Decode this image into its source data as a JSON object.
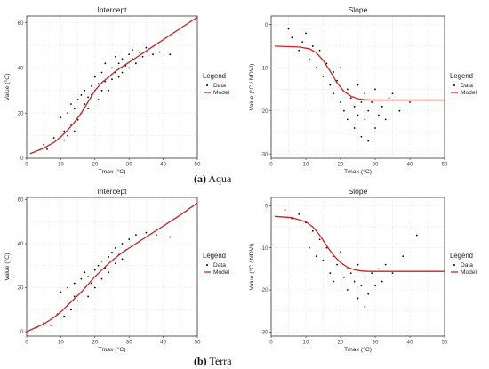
{
  "colors": {
    "data": "#000000",
    "model": "#cc2222",
    "grid": "#e6e6e6",
    "panel_border": "#333333"
  },
  "figure": {
    "captions": [
      {
        "label": "(a)",
        "text": " Aqua"
      },
      {
        "label": "(b)",
        "text": " Terra"
      }
    ]
  },
  "chart_data": [
    {
      "type": "scatter",
      "group": "Aqua",
      "title": "Intercept",
      "xlabel": "Tmax (°C)",
      "ylabel": "Value (°C)",
      "xlim": [
        0,
        50
      ],
      "ylim": [
        0,
        63
      ],
      "xticks": [
        0,
        10,
        20,
        30,
        40,
        50
      ],
      "yticks": [
        0,
        20,
        40,
        60
      ],
      "grid": true,
      "legend": {
        "title": "Legend",
        "entries": [
          "Data",
          "Model"
        ],
        "placement": "right"
      },
      "series": [
        {
          "name": "Data",
          "kind": "points",
          "x": [
            5,
            6,
            8,
            10,
            11,
            11,
            12,
            12,
            13,
            13,
            14,
            14,
            15,
            15,
            16,
            16,
            17,
            17,
            18,
            18,
            19,
            19,
            20,
            20,
            21,
            21,
            22,
            22,
            23,
            23,
            24,
            24,
            25,
            25,
            26,
            26,
            27,
            27,
            28,
            28,
            29,
            30,
            30,
            31,
            31,
            32,
            33,
            34,
            35,
            37,
            39,
            42
          ],
          "y": [
            6,
            4,
            9,
            18,
            8,
            12,
            20,
            10,
            15,
            24,
            12,
            22,
            17,
            26,
            20,
            28,
            24,
            30,
            22,
            27,
            32,
            28,
            30,
            36,
            33,
            26,
            30,
            38,
            34,
            42,
            36,
            30,
            40,
            35,
            38,
            45,
            42,
            36,
            44,
            38,
            41,
            46,
            40,
            44,
            48,
            42,
            47,
            45,
            49,
            46,
            47,
            46
          ]
        },
        {
          "name": "Model",
          "kind": "line",
          "x": [
            1,
            5,
            8,
            10,
            12,
            14,
            16,
            17,
            18,
            19,
            20,
            22,
            24,
            26,
            28,
            30,
            32,
            34,
            36,
            40,
            45,
            50
          ],
          "y": [
            2,
            4.5,
            7,
            9.5,
            12.5,
            16,
            20,
            22.5,
            25,
            27.5,
            30,
            33.5,
            36,
            38.5,
            40.5,
            42.5,
            44.5,
            46.5,
            48.5,
            52.5,
            57.5,
            62.5
          ]
        }
      ]
    },
    {
      "type": "scatter",
      "group": "Aqua",
      "title": "Slope",
      "xlabel": "Tmax (°C)",
      "ylabel": "Value (°C / NDVI)",
      "xlim": [
        0,
        50
      ],
      "ylim": [
        -31,
        2
      ],
      "xticks": [
        0,
        10,
        20,
        30,
        40,
        50
      ],
      "yticks": [
        0,
        -10,
        -20,
        -30
      ],
      "grid": true,
      "legend": {
        "title": "Legend",
        "entries": [
          "Data",
          "Model"
        ],
        "placement": "right"
      },
      "series": [
        {
          "name": "Data",
          "kind": "points",
          "x": [
            5,
            6,
            8,
            9,
            10,
            11,
            12,
            13,
            14,
            15,
            16,
            17,
            18,
            18,
            19,
            20,
            20,
            21,
            22,
            22,
            23,
            24,
            24,
            25,
            25,
            26,
            26,
            27,
            27,
            28,
            28,
            29,
            30,
            30,
            31,
            32,
            33,
            34,
            35,
            37,
            40
          ],
          "y": [
            -1,
            -3,
            -6,
            -4,
            -2,
            -8,
            -5,
            -10,
            -6,
            -12,
            -9,
            -14,
            -11,
            -16,
            -13,
            -18,
            -10,
            -20,
            -15,
            -22,
            -17,
            -19,
            -24,
            -14,
            -21,
            -26,
            -18,
            -22,
            -16,
            -27,
            -20,
            -18,
            -24,
            -15,
            -21,
            -19,
            -22,
            -17,
            -16,
            -20,
            -18
          ]
        },
        {
          "name": "Model",
          "kind": "line",
          "x": [
            1,
            8,
            11,
            13,
            15,
            17,
            19,
            21,
            23,
            25,
            27,
            29,
            32,
            36,
            42,
            50
          ],
          "y": [
            -5,
            -5.2,
            -5.6,
            -6.5,
            -8.3,
            -10.8,
            -13.5,
            -15.5,
            -16.6,
            -17.2,
            -17.4,
            -17.5,
            -17.5,
            -17.5,
            -17.5,
            -17.5
          ]
        }
      ]
    },
    {
      "type": "scatter",
      "group": "Terra",
      "title": "Intercept",
      "xlabel": "Tmax (°C)",
      "ylabel": "Value (°C)",
      "xlim": [
        0,
        50
      ],
      "ylim": [
        -2,
        61
      ],
      "xticks": [
        0,
        10,
        20,
        30,
        40,
        50
      ],
      "yticks": [
        0,
        20,
        40,
        60
      ],
      "grid": true,
      "legend": {
        "title": "Legend",
        "entries": [
          "Data",
          "Model"
        ],
        "placement": "right"
      },
      "series": [
        {
          "name": "Data",
          "kind": "points",
          "x": [
            3,
            5,
            7,
            9,
            10,
            11,
            12,
            12,
            13,
            14,
            14,
            15,
            16,
            16,
            17,
            17,
            18,
            18,
            19,
            20,
            20,
            21,
            22,
            22,
            23,
            24,
            24,
            25,
            26,
            26,
            27,
            28,
            28,
            29,
            30,
            31,
            32,
            33,
            35,
            38,
            42
          ],
          "y": [
            2,
            4,
            3,
            8,
            18,
            7,
            12,
            20,
            10,
            16,
            22,
            14,
            18,
            24,
            20,
            27,
            16,
            25,
            22,
            28,
            20,
            30,
            24,
            32,
            29,
            34,
            27,
            36,
            31,
            38,
            35,
            33,
            40,
            37,
            42,
            39,
            44,
            41,
            45,
            44,
            43
          ]
        },
        {
          "name": "Model",
          "kind": "line",
          "x": [
            0,
            5,
            8,
            10,
            12,
            14,
            16,
            18,
            20,
            22,
            24,
            26,
            28,
            30,
            32,
            34,
            36,
            40,
            45,
            50
          ],
          "y": [
            0,
            3.5,
            6.5,
            9,
            12,
            15,
            18,
            21.5,
            25,
            28,
            31,
            33.5,
            36,
            38,
            40,
            42,
            44,
            48,
            53,
            58.5
          ]
        }
      ]
    },
    {
      "type": "scatter",
      "group": "Terra",
      "title": "Slope",
      "xlabel": "Tmax (°C)",
      "ylabel": "Value (°C / NDVI)",
      "xlim": [
        0,
        50
      ],
      "ylim": [
        -31,
        2
      ],
      "xticks": [
        0,
        10,
        20,
        30,
        40,
        50
      ],
      "yticks": [
        0,
        -10,
        -20,
        -30
      ],
      "grid": true,
      "legend": {
        "title": "Legend",
        "entries": [
          "Data",
          "Model"
        ],
        "placement": "right"
      },
      "series": [
        {
          "name": "Data",
          "kind": "points",
          "x": [
            4,
            6,
            8,
            10,
            11,
            12,
            13,
            14,
            15,
            16,
            17,
            18,
            18,
            19,
            20,
            21,
            22,
            22,
            23,
            24,
            25,
            25,
            26,
            27,
            27,
            28,
            29,
            30,
            31,
            32,
            33,
            35,
            38,
            42
          ],
          "y": [
            -1,
            -3,
            -2,
            -4,
            -10,
            -6,
            -12,
            -8,
            -13,
            -10,
            -16,
            -12,
            -18,
            -14,
            -11,
            -17,
            -15,
            -20,
            -16,
            -18,
            -14,
            -22,
            -19,
            -17,
            -24,
            -21,
            -16,
            -19,
            -15,
            -18,
            -14,
            -16,
            -12,
            -7
          ]
        },
        {
          "name": "Model",
          "kind": "line",
          "x": [
            1,
            6,
            10,
            12,
            14,
            16,
            18,
            20,
            22,
            24,
            26,
            28,
            30,
            34,
            40,
            50
          ],
          "y": [
            -2.5,
            -2.8,
            -3.8,
            -5,
            -7,
            -9.5,
            -11.8,
            -13.5,
            -14.6,
            -15.2,
            -15.5,
            -15.6,
            -15.6,
            -15.6,
            -15.6,
            -15.6
          ]
        }
      ]
    }
  ]
}
